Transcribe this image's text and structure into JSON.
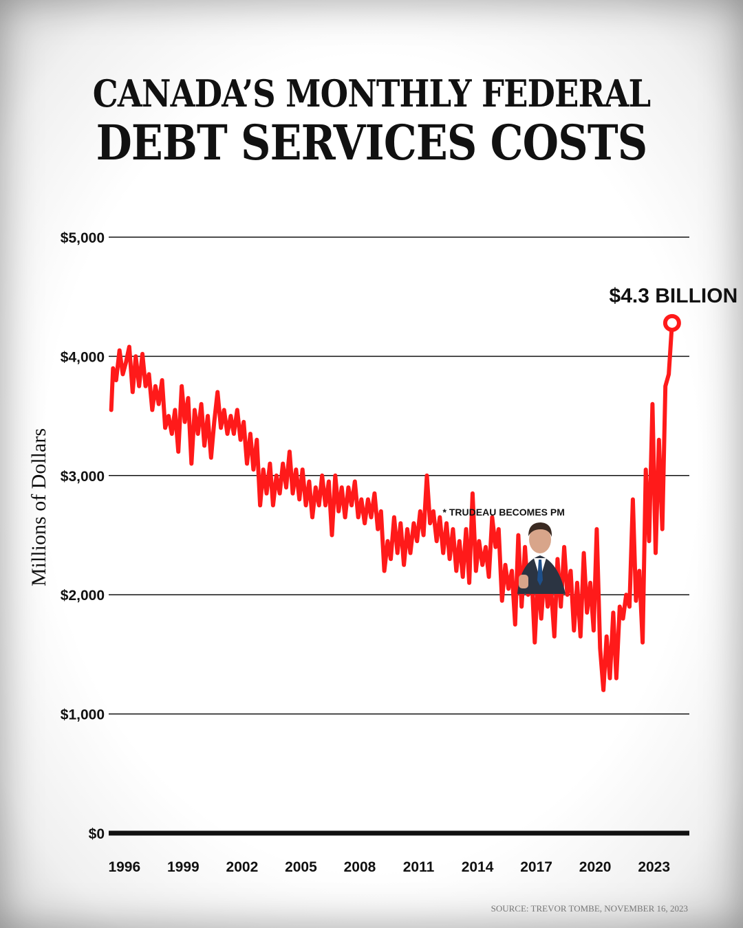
{
  "title_line1": "CANADA’S MONTHLY FEDERAL",
  "title_line2": "DEBT SERVICES COSTS",
  "source": "SOURCE: TREVOR TOMBE, NOVEMBER 16, 2023",
  "colors": {
    "line": "#ff1a1a",
    "text": "#111111",
    "grid": "#111111"
  },
  "chart_data": {
    "type": "line",
    "title": "CANADA’S MONTHLY FEDERAL DEBT SERVICES COSTS",
    "ylabel": "Millions of Dollars",
    "xlabel": "",
    "ylim": [
      0,
      5000
    ],
    "xlim": [
      1995.2,
      2024.8
    ],
    "y_ticks": [
      0,
      1000,
      2000,
      3000,
      4000,
      5000
    ],
    "y_tick_labels": [
      "$0",
      "$1,000",
      "$2,000",
      "$3,000",
      "$4,000",
      "$5,000"
    ],
    "x_ticks": [
      1996,
      1999,
      2002,
      2005,
      2008,
      2011,
      2014,
      2017,
      2020,
      2023
    ],
    "x_tick_labels": [
      "1996",
      "1999",
      "2002",
      "2005",
      "2008",
      "2011",
      "2014",
      "2017",
      "2020",
      "2023"
    ],
    "grid": true,
    "series": [
      {
        "name": "",
        "color": "#ff1a1a",
        "points": [
          [
            1995.33,
            3550
          ],
          [
            1995.42,
            3900
          ],
          [
            1995.58,
            3800
          ],
          [
            1995.75,
            4050
          ],
          [
            1995.92,
            3850
          ],
          [
            1996.08,
            3950
          ],
          [
            1996.25,
            4080
          ],
          [
            1996.42,
            3700
          ],
          [
            1996.58,
            4000
          ],
          [
            1996.75,
            3750
          ],
          [
            1996.92,
            4020
          ],
          [
            1997.08,
            3750
          ],
          [
            1997.25,
            3850
          ],
          [
            1997.42,
            3550
          ],
          [
            1997.58,
            3750
          ],
          [
            1997.75,
            3600
          ],
          [
            1997.92,
            3800
          ],
          [
            1998.08,
            3400
          ],
          [
            1998.25,
            3500
          ],
          [
            1998.42,
            3350
          ],
          [
            1998.58,
            3550
          ],
          [
            1998.75,
            3200
          ],
          [
            1998.92,
            3750
          ],
          [
            1999.08,
            3450
          ],
          [
            1999.25,
            3650
          ],
          [
            1999.42,
            3100
          ],
          [
            1999.58,
            3550
          ],
          [
            1999.75,
            3350
          ],
          [
            1999.92,
            3600
          ],
          [
            2000.08,
            3250
          ],
          [
            2000.25,
            3500
          ],
          [
            2000.42,
            3150
          ],
          [
            2000.58,
            3450
          ],
          [
            2000.75,
            3700
          ],
          [
            2000.92,
            3400
          ],
          [
            2001.08,
            3550
          ],
          [
            2001.25,
            3350
          ],
          [
            2001.42,
            3500
          ],
          [
            2001.58,
            3350
          ],
          [
            2001.75,
            3550
          ],
          [
            2001.92,
            3300
          ],
          [
            2002.08,
            3450
          ],
          [
            2002.25,
            3100
          ],
          [
            2002.42,
            3350
          ],
          [
            2002.58,
            3050
          ],
          [
            2002.75,
            3300
          ],
          [
            2002.92,
            2750
          ],
          [
            2003.08,
            3050
          ],
          [
            2003.25,
            2850
          ],
          [
            2003.42,
            3100
          ],
          [
            2003.58,
            2750
          ],
          [
            2003.75,
            3000
          ],
          [
            2003.92,
            2850
          ],
          [
            2004.08,
            3100
          ],
          [
            2004.25,
            2900
          ],
          [
            2004.42,
            3200
          ],
          [
            2004.58,
            2850
          ],
          [
            2004.75,
            3050
          ],
          [
            2004.92,
            2800
          ],
          [
            2005.08,
            3050
          ],
          [
            2005.25,
            2750
          ],
          [
            2005.42,
            2950
          ],
          [
            2005.58,
            2650
          ],
          [
            2005.75,
            2900
          ],
          [
            2005.92,
            2750
          ],
          [
            2006.08,
            3000
          ],
          [
            2006.25,
            2750
          ],
          [
            2006.42,
            2950
          ],
          [
            2006.58,
            2500
          ],
          [
            2006.75,
            3000
          ],
          [
            2006.92,
            2700
          ],
          [
            2007.08,
            2900
          ],
          [
            2007.25,
            2650
          ],
          [
            2007.42,
            2900
          ],
          [
            2007.58,
            2750
          ],
          [
            2007.75,
            2950
          ],
          [
            2007.92,
            2650
          ],
          [
            2008.08,
            2800
          ],
          [
            2008.25,
            2600
          ],
          [
            2008.42,
            2800
          ],
          [
            2008.58,
            2650
          ],
          [
            2008.75,
            2850
          ],
          [
            2008.92,
            2550
          ],
          [
            2009.08,
            2700
          ],
          [
            2009.25,
            2200
          ],
          [
            2009.42,
            2450
          ],
          [
            2009.58,
            2300
          ],
          [
            2009.75,
            2650
          ],
          [
            2009.92,
            2350
          ],
          [
            2010.08,
            2600
          ],
          [
            2010.25,
            2250
          ],
          [
            2010.42,
            2550
          ],
          [
            2010.58,
            2350
          ],
          [
            2010.75,
            2600
          ],
          [
            2010.92,
            2450
          ],
          [
            2011.08,
            2700
          ],
          [
            2011.25,
            2500
          ],
          [
            2011.42,
            3000
          ],
          [
            2011.58,
            2600
          ],
          [
            2011.75,
            2700
          ],
          [
            2011.92,
            2450
          ],
          [
            2012.08,
            2650
          ],
          [
            2012.25,
            2350
          ],
          [
            2012.42,
            2600
          ],
          [
            2012.58,
            2300
          ],
          [
            2012.75,
            2550
          ],
          [
            2012.92,
            2200
          ],
          [
            2013.08,
            2450
          ],
          [
            2013.25,
            2150
          ],
          [
            2013.42,
            2550
          ],
          [
            2013.58,
            2100
          ],
          [
            2013.75,
            2850
          ],
          [
            2013.92,
            2200
          ],
          [
            2014.08,
            2450
          ],
          [
            2014.25,
            2250
          ],
          [
            2014.42,
            2400
          ],
          [
            2014.58,
            2150
          ],
          [
            2014.75,
            2650
          ],
          [
            2014.92,
            2400
          ],
          [
            2015.08,
            2550
          ],
          [
            2015.25,
            1950
          ],
          [
            2015.42,
            2250
          ],
          [
            2015.58,
            2050
          ],
          [
            2015.75,
            2200
          ],
          [
            2015.92,
            1750
          ],
          [
            2016.08,
            2500
          ],
          [
            2016.25,
            1900
          ],
          [
            2016.42,
            2400
          ],
          [
            2016.58,
            2000
          ],
          [
            2016.75,
            2200
          ],
          [
            2016.92,
            1600
          ],
          [
            2017.08,
            2150
          ],
          [
            2017.25,
            1800
          ],
          [
            2017.42,
            2200
          ],
          [
            2017.58,
            1900
          ],
          [
            2017.75,
            2050
          ],
          [
            2017.92,
            1650
          ],
          [
            2018.08,
            2300
          ],
          [
            2018.25,
            1900
          ],
          [
            2018.42,
            2400
          ],
          [
            2018.58,
            2000
          ],
          [
            2018.75,
            2200
          ],
          [
            2018.92,
            1700
          ],
          [
            2019.08,
            2100
          ],
          [
            2019.25,
            1650
          ],
          [
            2019.42,
            2350
          ],
          [
            2019.58,
            1850
          ],
          [
            2019.75,
            2100
          ],
          [
            2019.92,
            1700
          ],
          [
            2020.08,
            2550
          ],
          [
            2020.25,
            1550
          ],
          [
            2020.42,
            1200
          ],
          [
            2020.58,
            1650
          ],
          [
            2020.75,
            1300
          ],
          [
            2020.92,
            1850
          ],
          [
            2021.08,
            1300
          ],
          [
            2021.25,
            1900
          ],
          [
            2021.42,
            1800
          ],
          [
            2021.58,
            2000
          ],
          [
            2021.75,
            1900
          ],
          [
            2021.92,
            2800
          ],
          [
            2022.08,
            1950
          ],
          [
            2022.25,
            2200
          ],
          [
            2022.42,
            1600
          ],
          [
            2022.58,
            3050
          ],
          [
            2022.75,
            2450
          ],
          [
            2022.92,
            3600
          ],
          [
            2023.08,
            2350
          ],
          [
            2023.25,
            3300
          ],
          [
            2023.42,
            2550
          ],
          [
            2023.58,
            3750
          ],
          [
            2023.75,
            3850
          ],
          [
            2023.92,
            4280
          ]
        ]
      }
    ],
    "annotations": [
      {
        "text": "$4.3 BILLION",
        "x": 2023.92,
        "y": 4280,
        "marker": "circle"
      },
      {
        "text": "* TRUDEAU BECOMES PM",
        "x": 2015.83,
        "y": 2200
      }
    ]
  }
}
